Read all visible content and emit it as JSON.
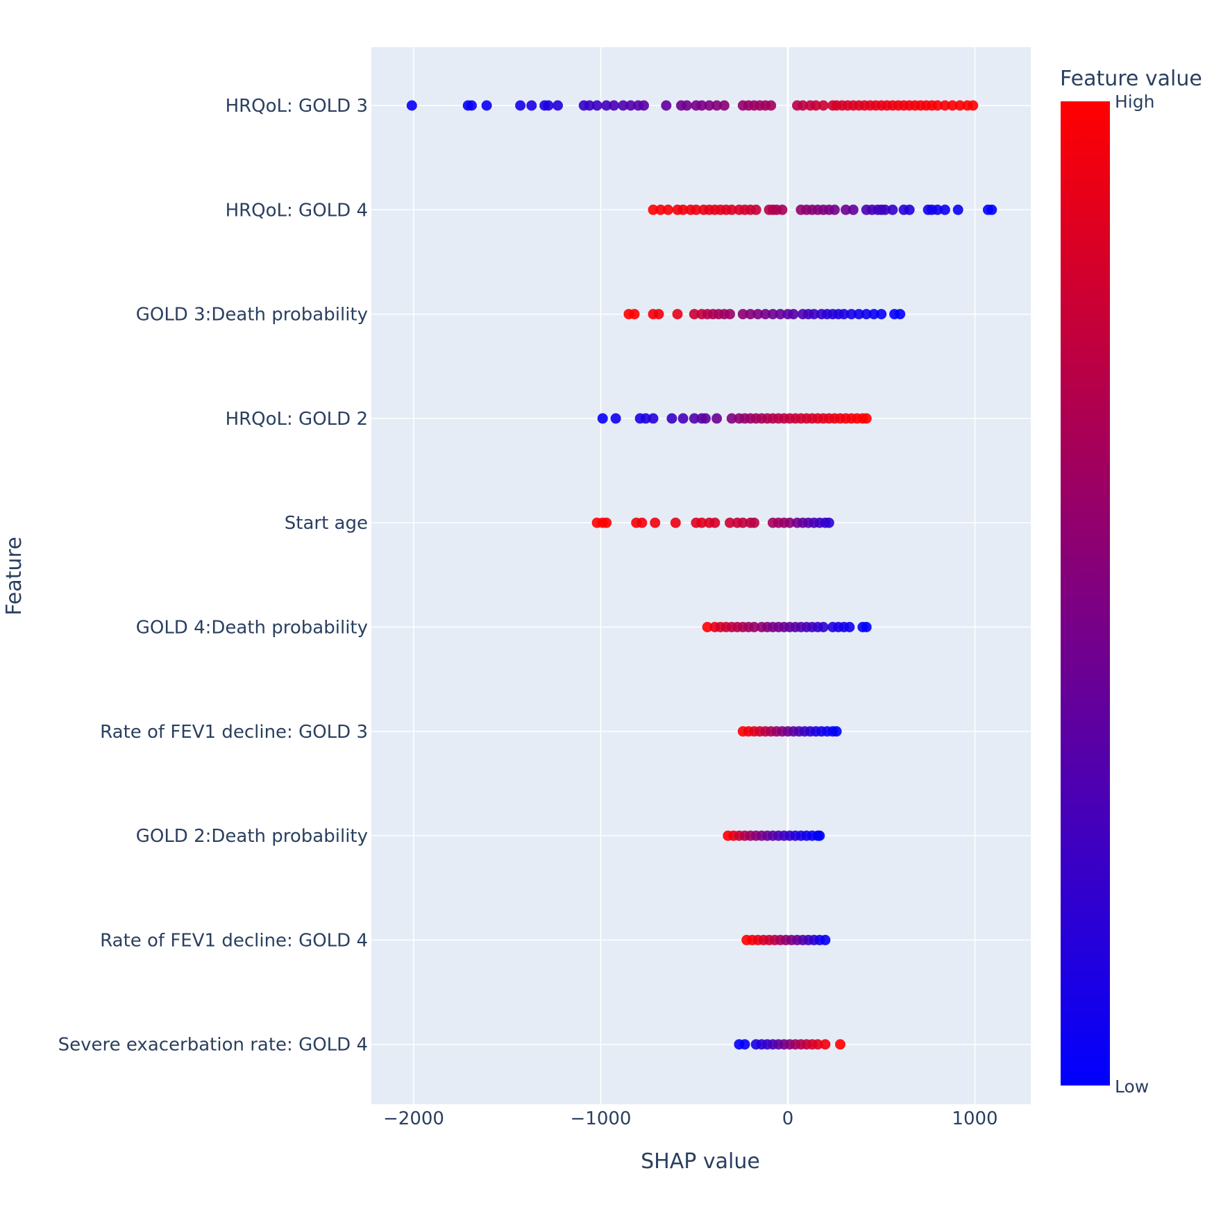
{
  "chart_data": {
    "type": "scatter",
    "title": "",
    "xlabel": "SHAP value",
    "ylabel": "Feature",
    "xlim": [
      -2200,
      1300
    ],
    "xticks": [
      {
        "value": -2000,
        "label": "−2000"
      },
      {
        "value": -1000,
        "label": "−1000"
      },
      {
        "value": 0,
        "label": "0"
      },
      {
        "value": 1000,
        "label": "1000"
      }
    ],
    "grid": true,
    "colorbar": {
      "title": "Feature value",
      "high_label": "High",
      "low_label": "Low",
      "high_color": "#ff0000",
      "low_color": "#0000ff"
    },
    "colors": {
      "plot_background": "#e5ecf6",
      "grid": "#ffffff",
      "text": "#2a3f5f"
    },
    "categories": [
      "HRQoL: GOLD 3",
      "HRQoL: GOLD 4",
      "GOLD 3:Death probability",
      "HRQoL: GOLD 2",
      "Start age",
      "GOLD 4:Death probability",
      "Rate of FEV1 decline: GOLD 3",
      "GOLD 2:Death probability",
      "Rate of FEV1 decline: GOLD 4",
      "Severe exacerbation rate: GOLD 4"
    ],
    "series": [
      {
        "feature": "HRQoL: GOLD 3",
        "x": [
          -2010,
          -1710,
          -1690,
          -1610,
          -1430,
          -1370,
          -1300,
          -1280,
          -1230,
          -1090,
          -1060,
          -1020,
          -970,
          -930,
          -880,
          -840,
          -800,
          -770,
          -650,
          -570,
          -540,
          -490,
          -460,
          -420,
          -380,
          -340,
          -240,
          -210,
          -180,
          -150,
          -120,
          -90,
          50,
          80,
          120,
          150,
          190,
          240,
          260,
          290,
          320,
          350,
          380,
          410,
          440,
          470,
          500,
          530,
          560,
          590,
          620,
          650,
          680,
          710,
          740,
          770,
          800,
          840,
          880,
          920,
          960,
          990
        ],
        "c": [
          0.02,
          0.03,
          0.04,
          0.04,
          0.08,
          0.1,
          0.12,
          0.12,
          0.14,
          0.2,
          0.22,
          0.24,
          0.26,
          0.28,
          0.3,
          0.32,
          0.34,
          0.35,
          0.38,
          0.42,
          0.44,
          0.46,
          0.48,
          0.5,
          0.52,
          0.54,
          0.58,
          0.6,
          0.61,
          0.62,
          0.63,
          0.64,
          0.72,
          0.74,
          0.76,
          0.78,
          0.8,
          0.82,
          0.83,
          0.84,
          0.85,
          0.86,
          0.87,
          0.88,
          0.89,
          0.9,
          0.91,
          0.92,
          0.93,
          0.94,
          0.95,
          0.95,
          0.96,
          0.96,
          0.97,
          0.97,
          0.98,
          0.98,
          0.99,
          0.99,
          1.0,
          1.0
        ]
      },
      {
        "feature": "HRQoL: GOLD 4",
        "x": [
          -720,
          -680,
          -640,
          -590,
          -560,
          -520,
          -490,
          -450,
          -420,
          -390,
          -360,
          -330,
          -300,
          -260,
          -230,
          -200,
          -170,
          -100,
          -80,
          -60,
          -30,
          70,
          100,
          130,
          160,
          190,
          220,
          250,
          310,
          350,
          420,
          450,
          480,
          500,
          520,
          560,
          620,
          650,
          750,
          770,
          800,
          840,
          910,
          1070,
          1090
        ],
        "c": [
          1.0,
          0.98,
          0.97,
          0.96,
          0.95,
          0.94,
          0.93,
          0.92,
          0.91,
          0.9,
          0.89,
          0.88,
          0.87,
          0.85,
          0.83,
          0.8,
          0.78,
          0.72,
          0.7,
          0.68,
          0.66,
          0.58,
          0.56,
          0.54,
          0.52,
          0.5,
          0.48,
          0.46,
          0.42,
          0.4,
          0.3,
          0.28,
          0.26,
          0.25,
          0.24,
          0.2,
          0.15,
          0.13,
          0.08,
          0.07,
          0.06,
          0.05,
          0.03,
          0.01,
          0.0
        ]
      },
      {
        "feature": "GOLD 3:Death probability",
        "x": [
          -850,
          -820,
          -720,
          -690,
          -590,
          -500,
          -460,
          -430,
          -400,
          -370,
          -340,
          -310,
          -240,
          -200,
          -160,
          -120,
          -80,
          -40,
          0,
          30,
          80,
          110,
          140,
          180,
          210,
          240,
          270,
          300,
          340,
          380,
          420,
          460,
          500,
          570,
          600
        ],
        "c": [
          1.0,
          0.99,
          0.96,
          0.95,
          0.9,
          0.8,
          0.76,
          0.72,
          0.68,
          0.65,
          0.62,
          0.6,
          0.55,
          0.52,
          0.49,
          0.46,
          0.43,
          0.4,
          0.37,
          0.34,
          0.3,
          0.27,
          0.24,
          0.2,
          0.17,
          0.15,
          0.13,
          0.11,
          0.09,
          0.07,
          0.05,
          0.04,
          0.03,
          0.01,
          0.0
        ]
      },
      {
        "feature": "HRQoL: GOLD 2",
        "x": [
          -990,
          -920,
          -790,
          -760,
          -720,
          -620,
          -560,
          -500,
          -460,
          -440,
          -380,
          -300,
          -260,
          -230,
          -200,
          -170,
          -140,
          -110,
          -80,
          -50,
          -20,
          10,
          40,
          70,
          100,
          130,
          160,
          190,
          220,
          250,
          280,
          310,
          340,
          370,
          400,
          420
        ],
        "c": [
          0.02,
          0.05,
          0.1,
          0.12,
          0.15,
          0.22,
          0.28,
          0.32,
          0.35,
          0.37,
          0.42,
          0.5,
          0.55,
          0.58,
          0.6,
          0.62,
          0.65,
          0.68,
          0.7,
          0.72,
          0.74,
          0.76,
          0.78,
          0.8,
          0.82,
          0.84,
          0.86,
          0.88,
          0.9,
          0.92,
          0.94,
          0.95,
          0.96,
          0.98,
          0.99,
          1.0
        ]
      },
      {
        "feature": "Start age",
        "x": [
          -1020,
          -990,
          -970,
          -810,
          -780,
          -710,
          -600,
          -490,
          -460,
          -420,
          -390,
          -310,
          -270,
          -240,
          -200,
          -180,
          -80,
          -50,
          -20,
          10,
          50,
          80,
          110,
          140,
          170,
          200,
          220
        ],
        "c": [
          1.0,
          1.0,
          0.99,
          0.97,
          0.96,
          0.95,
          0.92,
          0.88,
          0.87,
          0.85,
          0.84,
          0.8,
          0.78,
          0.76,
          0.74,
          0.72,
          0.65,
          0.62,
          0.6,
          0.55,
          0.45,
          0.4,
          0.35,
          0.3,
          0.25,
          0.2,
          0.18
        ]
      },
      {
        "feature": "GOLD 4:Death probability",
        "x": [
          -430,
          -390,
          -360,
          -330,
          -300,
          -270,
          -240,
          -210,
          -180,
          -140,
          -110,
          -80,
          -50,
          -20,
          10,
          40,
          70,
          100,
          130,
          160,
          190,
          240,
          270,
          300,
          330,
          400,
          420
        ],
        "c": [
          1.0,
          0.9,
          0.85,
          0.8,
          0.76,
          0.72,
          0.68,
          0.64,
          0.6,
          0.56,
          0.52,
          0.48,
          0.45,
          0.42,
          0.39,
          0.36,
          0.33,
          0.3,
          0.26,
          0.22,
          0.18,
          0.12,
          0.1,
          0.08,
          0.06,
          0.02,
          0.0
        ]
      },
      {
        "feature": "Rate of FEV1 decline: GOLD 3",
        "x": [
          -240,
          -210,
          -180,
          -150,
          -120,
          -90,
          -60,
          -30,
          0,
          30,
          60,
          90,
          120,
          150,
          180,
          210,
          240,
          260
        ],
        "c": [
          1.0,
          0.95,
          0.9,
          0.82,
          0.75,
          0.68,
          0.6,
          0.52,
          0.45,
          0.38,
          0.3,
          0.24,
          0.18,
          0.12,
          0.08,
          0.05,
          0.02,
          0.0
        ]
      },
      {
        "feature": "GOLD 2:Death probability",
        "x": [
          -320,
          -290,
          -260,
          -230,
          -200,
          -170,
          -140,
          -110,
          -80,
          -50,
          -20,
          10,
          40,
          70,
          100,
          130,
          160,
          170
        ],
        "c": [
          1.0,
          0.92,
          0.8,
          0.7,
          0.62,
          0.55,
          0.48,
          0.42,
          0.36,
          0.3,
          0.25,
          0.2,
          0.15,
          0.1,
          0.07,
          0.04,
          0.02,
          0.0
        ]
      },
      {
        "feature": "Rate of FEV1 decline: GOLD 4",
        "x": [
          -220,
          -190,
          -160,
          -130,
          -100,
          -70,
          -40,
          -10,
          20,
          50,
          80,
          110,
          140,
          170,
          200
        ],
        "c": [
          1.0,
          0.97,
          0.92,
          0.86,
          0.8,
          0.74,
          0.66,
          0.58,
          0.5,
          0.42,
          0.34,
          0.26,
          0.18,
          0.1,
          0.02
        ]
      },
      {
        "feature": "Severe exacerbation rate: GOLD 4",
        "x": [
          -260,
          -230,
          -170,
          -140,
          -110,
          -80,
          -50,
          -20,
          10,
          40,
          70,
          100,
          130,
          160,
          200,
          280
        ],
        "c": [
          0.0,
          0.02,
          0.1,
          0.15,
          0.2,
          0.28,
          0.36,
          0.44,
          0.52,
          0.6,
          0.68,
          0.76,
          0.82,
          0.88,
          0.94,
          1.0
        ]
      }
    ]
  }
}
